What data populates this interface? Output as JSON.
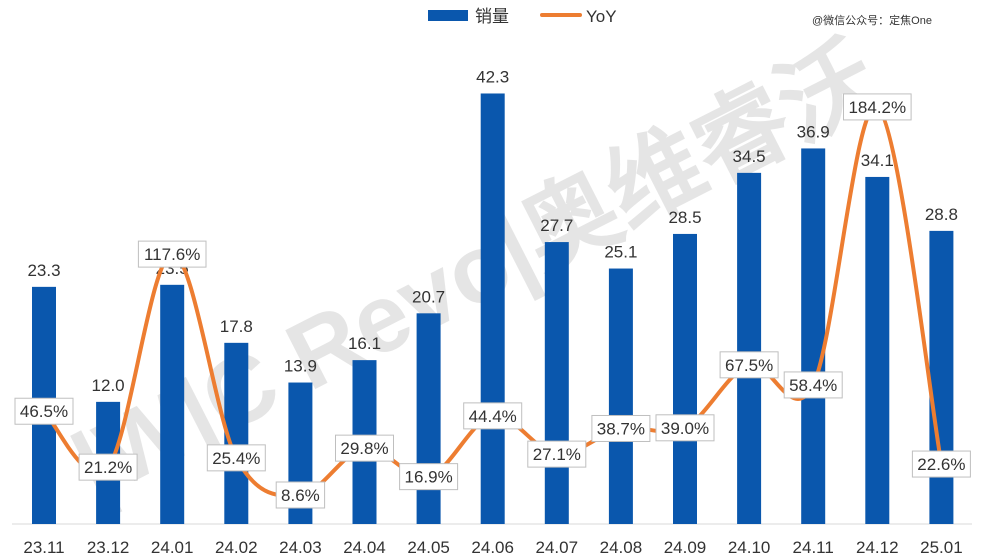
{
  "chart_data": {
    "type": "bar",
    "categories": [
      "23.11",
      "23.12",
      "24.01",
      "24.02",
      "24.03",
      "24.04",
      "24.05",
      "24.06",
      "24.07",
      "24.08",
      "24.09",
      "24.10",
      "24.11",
      "24.12",
      "25.01"
    ],
    "series": [
      {
        "name": "销量",
        "type": "bar",
        "axis": "left",
        "color": "#0A57AD",
        "values": [
          23.3,
          12.0,
          23.5,
          17.8,
          13.9,
          16.1,
          20.7,
          42.3,
          27.7,
          25.1,
          28.5,
          34.5,
          36.9,
          34.1,
          28.8
        ],
        "labels": [
          "23.3",
          "12.0",
          "23.5",
          "17.8",
          "13.9",
          "16.1",
          "20.7",
          "42.3",
          "27.7",
          "25.1",
          "28.5",
          "34.5",
          "36.9",
          "34.1",
          "28.8"
        ]
      },
      {
        "name": "YoY",
        "type": "line",
        "axis": "right",
        "smooth": true,
        "color": "#ED7D31",
        "values": [
          46.5,
          21.2,
          117.6,
          25.4,
          8.6,
          29.8,
          16.9,
          44.4,
          27.1,
          38.7,
          39.0,
          67.5,
          58.4,
          184.2,
          22.6
        ],
        "labels": [
          "46.5%",
          "21.2%",
          "117.6%",
          "25.4%",
          "8.6%",
          "29.8%",
          "16.9%",
          "44.4%",
          "27.1%",
          "38.7%",
          "39.0%",
          "67.5%",
          "58.4%",
          "184.2%",
          "22.6%"
        ]
      }
    ],
    "ylim_left": [
      0,
      45
    ],
    "ylim_right": [
      0,
      200
    ],
    "grid": false,
    "legend_position": "top-center"
  },
  "credit": "@微信公众号：定焦One",
  "watermark": "|W|C Revo|奥维睿沃"
}
